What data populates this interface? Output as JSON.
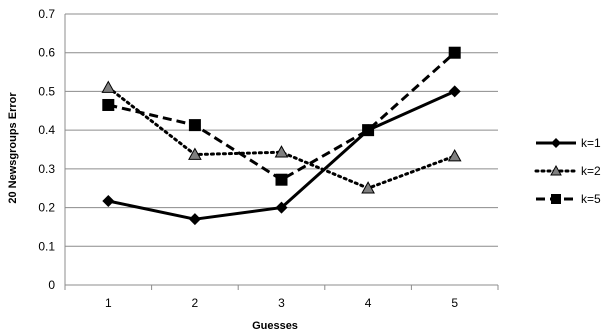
{
  "chart_data": {
    "type": "line",
    "title": "",
    "xlabel": "Guesses",
    "ylabel": "20 Newsgroups Error",
    "categories": [
      "1",
      "2",
      "3",
      "4",
      "5"
    ],
    "ylim": [
      0,
      0.7
    ],
    "yticks": [
      "0",
      "0.1",
      "0.2",
      "0.3",
      "0.4",
      "0.5",
      "0.6",
      "0.7"
    ],
    "grid": true,
    "legend_position": "right",
    "series": [
      {
        "name": "k=1",
        "values": [
          0.217,
          0.17,
          0.2,
          0.4,
          0.5
        ],
        "line": "solid",
        "marker": "diamond",
        "color": "#000000"
      },
      {
        "name": "k=2",
        "values": [
          0.51,
          0.337,
          0.343,
          0.25,
          0.333
        ],
        "line": "dotted",
        "marker": "triangle",
        "color": "#000000"
      },
      {
        "name": "k=5",
        "values": [
          0.465,
          0.413,
          0.272,
          0.4,
          0.6
        ],
        "line": "dashed",
        "marker": "square",
        "color": "#000000"
      }
    ]
  }
}
